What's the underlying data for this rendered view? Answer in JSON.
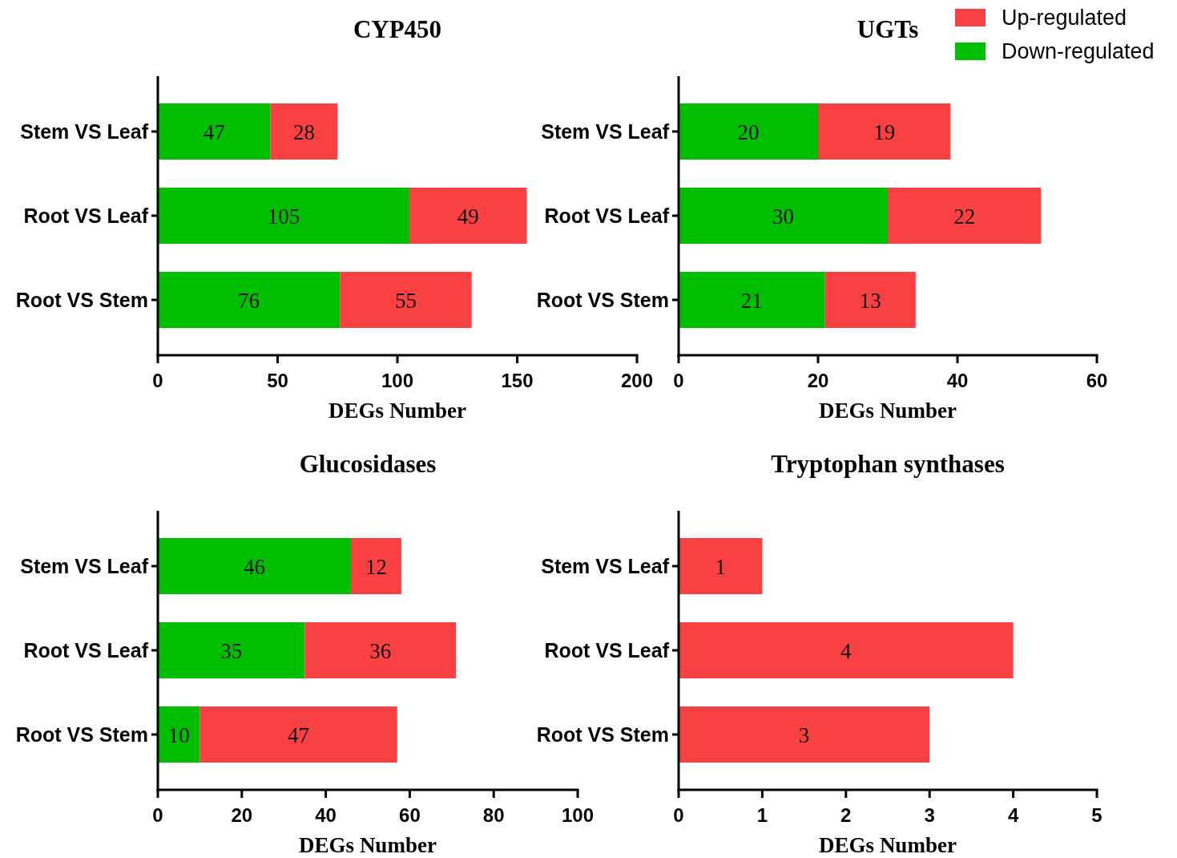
{
  "chart_data": [
    {
      "type": "bar",
      "orientation": "horizontal",
      "stacked": true,
      "title": "CYP450",
      "xlabel": "DEGs Number",
      "categories": [
        "Stem VS Leaf",
        "Root VS Leaf",
        "Root VS Stem"
      ],
      "xlim": [
        0,
        200
      ],
      "xticks": [
        0,
        50,
        100,
        150,
        200
      ],
      "data_labels": true,
      "legend": false,
      "grid": false,
      "series": [
        {
          "color": "#00bf00",
          "values": [
            47,
            105,
            76
          ]
        },
        {
          "color": "#f94144",
          "values": [
            28,
            49,
            55
          ]
        }
      ]
    },
    {
      "type": "bar",
      "orientation": "horizontal",
      "stacked": true,
      "title": "UGTs",
      "xlabel": "DEGs Number",
      "categories": [
        "Stem VS Leaf",
        "Root VS Leaf",
        "Root VS Stem"
      ],
      "xlim": [
        0,
        60
      ],
      "xticks": [
        0,
        20,
        40,
        60
      ],
      "data_labels": true,
      "legend": "top right",
      "grid": false,
      "series": [
        {
          "name": "Down-regulated",
          "color": "#00bf00",
          "values": [
            20,
            30,
            21
          ]
        },
        {
          "name": "Up-regulated",
          "color": "#f94144",
          "values": [
            19,
            22,
            13
          ]
        }
      ]
    },
    {
      "type": "bar",
      "orientation": "horizontal",
      "stacked": true,
      "title": "Glucosidases",
      "xlabel": "DEGs Number",
      "categories": [
        "Stem VS Leaf",
        "Root VS Leaf",
        "Root VS Stem"
      ],
      "xlim": [
        0,
        100
      ],
      "xticks": [
        0,
        20,
        40,
        60,
        80,
        100
      ],
      "data_labels": true,
      "legend": false,
      "grid": false,
      "series": [
        {
          "color": "#00bf00",
          "values": [
            46,
            35,
            10
          ]
        },
        {
          "color": "#f94144",
          "values": [
            12,
            36,
            47
          ]
        }
      ]
    },
    {
      "type": "bar",
      "orientation": "horizontal",
      "stacked": true,
      "title": "Tryptophan synthases",
      "xlabel": "DEGs Number",
      "categories": [
        "Stem VS Leaf",
        "Root VS Leaf",
        "Root VS Stem"
      ],
      "xlim": [
        0,
        5
      ],
      "xticks": [
        0,
        1,
        2,
        3,
        4,
        5
      ],
      "legend": false,
      "grid": false,
      "series": [
        {
          "color": "#00bf00",
          "values": [
            0,
            0,
            0
          ],
          "value_labels": [
            null,
            null,
            null
          ]
        },
        {
          "color": "#f94144",
          "values": [
            1,
            4,
            3
          ],
          "value_labels": [
            "1",
            "4",
            "3"
          ]
        }
      ]
    }
  ]
}
